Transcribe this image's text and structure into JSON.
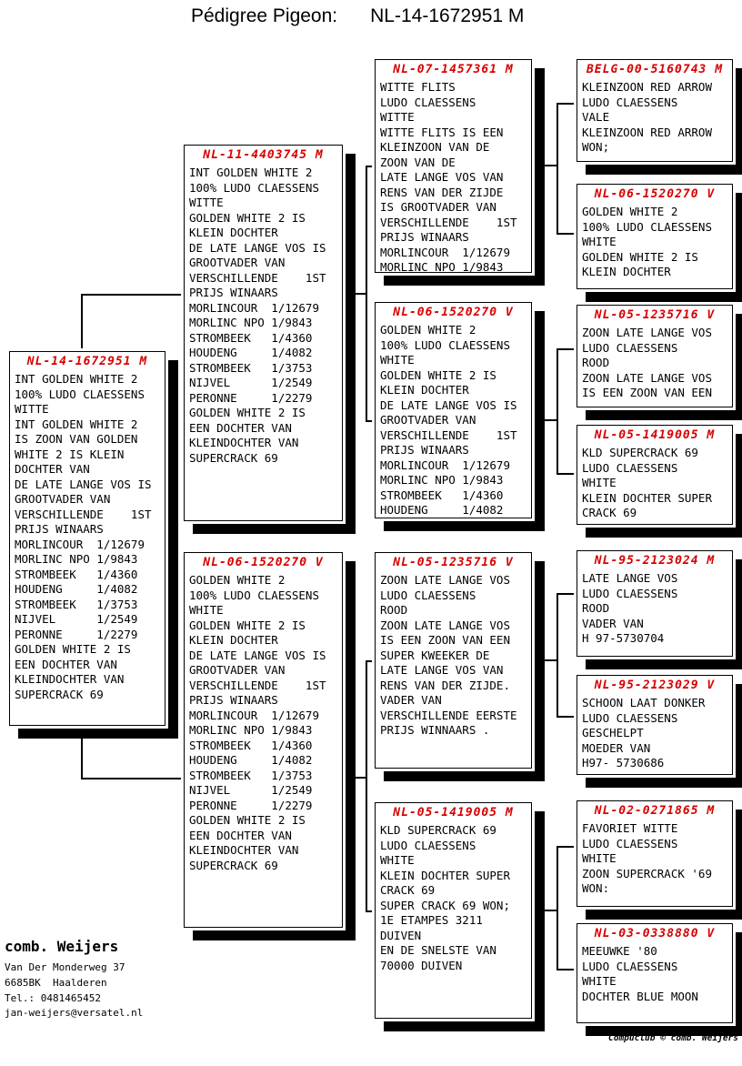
{
  "header": {
    "label": "Pédigree Pigeon:",
    "ring": "NL-14-1672951 M"
  },
  "colors": {
    "title_red": "#d60000",
    "line_black": "#000000"
  },
  "boxes": [
    {
      "generation": 1,
      "role": "subject",
      "title": "NL-14-1672951 M",
      "lines": [
        "INT GOLDEN WHITE 2",
        "100% LUDO CLAESSENS",
        "WITTE",
        "INT GOLDEN WHITE 2",
        "IS ZOON VAN GOLDEN",
        "WHITE 2 IS KLEIN",
        "DOCHTER VAN",
        "DE LATE LANGE VOS IS",
        "GROOTVADER VAN",
        "VERSCHILLENDE    1ST",
        "PRIJS WINAARS",
        "MORLINCOUR  1/12679",
        "MORLINC NPO 1/9843",
        "STROMBEEK   1/4360",
        "HOUDENG     1/4082",
        "STROMBEEK   1/3753",
        "NIJVEL      1/2549",
        "PERONNE     1/2279",
        "GOLDEN WHITE 2 IS",
        "EEN DOCHTER VAN",
        "KLEINDOCHTER VAN",
        "SUPERCRACK 69"
      ]
    },
    {
      "generation": 2,
      "role": "sire",
      "title": "NL-11-4403745 M",
      "lines": [
        "INT GOLDEN WHITE 2",
        "100% LUDO CLAESSENS",
        "WITTE",
        "GOLDEN WHITE 2 IS",
        "KLEIN DOCHTER",
        "DE LATE LANGE VOS IS",
        "GROOTVADER VAN",
        "VERSCHILLENDE    1ST",
        "PRIJS WINAARS",
        "MORLINCOUR  1/12679",
        "MORLINC NPO 1/9843",
        "STROMBEEK   1/4360",
        "HOUDENG     1/4082",
        "STROMBEEK   1/3753",
        "NIJVEL      1/2549",
        "PERONNE     1/2279",
        "GOLDEN WHITE 2 IS",
        "EEN DOCHTER VAN",
        "KLEINDOCHTER VAN",
        "SUPERCRACK 69"
      ]
    },
    {
      "generation": 2,
      "role": "dam",
      "title": "NL-06-1520270 V",
      "lines": [
        "GOLDEN WHITE 2",
        "100% LUDO CLAESSENS",
        "WHITE",
        "GOLDEN WHITE 2 IS",
        "KLEIN DOCHTER",
        "DE LATE LANGE VOS IS",
        "GROOTVADER VAN",
        "VERSCHILLENDE    1ST",
        "PRIJS WINAARS",
        "MORLINCOUR  1/12679",
        "MORLINC NPO 1/9843",
        "STROMBEEK   1/4360",
        "HOUDENG     1/4082",
        "STROMBEEK   1/3753",
        "NIJVEL      1/2549",
        "PERONNE     1/2279",
        "GOLDEN WHITE 2 IS",
        "EEN DOCHTER VAN",
        "KLEINDOCHTER VAN",
        "SUPERCRACK 69"
      ]
    },
    {
      "generation": 3,
      "role": "sire-sire",
      "title": "NL-07-1457361 M",
      "lines": [
        "WITTE FLITS",
        "LUDO CLAESSENS",
        "WITTE",
        "WITTE FLITS IS EEN",
        "KLEINZOON VAN DE",
        "ZOON VAN DE",
        "LATE LANGE VOS VAN",
        "RENS VAN DER ZIJDE",
        "IS GROOTVADER VAN",
        "VERSCHILLENDE    1ST",
        "PRIJS WINAARS",
        "MORLINCOUR  1/12679",
        "MORLINC NPO 1/9843"
      ]
    },
    {
      "generation": 3,
      "role": "sire-dam",
      "title": "NL-06-1520270 V",
      "lines": [
        "GOLDEN WHITE 2",
        "100% LUDO CLAESSENS",
        "WHITE",
        "GOLDEN WHITE 2 IS",
        "KLEIN DOCHTER",
        "DE LATE LANGE VOS IS",
        "GROOTVADER VAN",
        "VERSCHILLENDE    1ST",
        "PRIJS WINAARS",
        "MORLINCOUR  1/12679",
        "MORLINC NPO 1/9843",
        "STROMBEEK   1/4360",
        "HOUDENG     1/4082"
      ]
    },
    {
      "generation": 3,
      "role": "dam-sire",
      "title": "NL-05-1235716 V",
      "lines": [
        "ZOON LATE LANGE VOS",
        "LUDO CLAESSENS",
        "ROOD",
        "ZOON LATE LANGE VOS",
        "IS EEN ZOON VAN EEN",
        "SUPER KWEEKER DE",
        "LATE LANGE VOS VAN",
        "RENS VAN DER ZIJDE.",
        "VADER VAN",
        "VERSCHILLENDE EERSTE",
        "PRIJS WINNAARS ."
      ]
    },
    {
      "generation": 3,
      "role": "dam-dam",
      "title": "NL-05-1419005 M",
      "lines": [
        "KLD SUPERCRACK 69",
        "LUDO CLAESSENS",
        "WHITE",
        "KLEIN DOCHTER SUPER",
        "CRACK 69",
        "SUPER CRACK 69 WON;",
        "1E ETAMPES 3211",
        "DUIVEN",
        "EN DE SNELSTE VAN",
        "70000 DUIVEN"
      ]
    },
    {
      "generation": 4,
      "role": "gen4-1",
      "title": "BELG-00-5160743 M",
      "lines": [
        "KLEINZOON RED ARROW",
        "LUDO CLAESSENS",
        "VALE",
        "KLEINZOON RED ARROW",
        "WON;"
      ]
    },
    {
      "generation": 4,
      "role": "gen4-2",
      "title": "NL-06-1520270 V",
      "lines": [
        "GOLDEN WHITE 2",
        "100% LUDO CLAESSENS",
        "WHITE",
        "GOLDEN WHITE 2 IS",
        "KLEIN DOCHTER"
      ]
    },
    {
      "generation": 4,
      "role": "gen4-3",
      "title": "NL-05-1235716 V",
      "lines": [
        "ZOON LATE LANGE VOS",
        "LUDO CLAESSENS",
        "ROOD",
        "ZOON LATE LANGE VOS",
        "IS EEN ZOON VAN EEN"
      ]
    },
    {
      "generation": 4,
      "role": "gen4-4",
      "title": "NL-05-1419005 M",
      "lines": [
        "KLD SUPERCRACK 69",
        "LUDO CLAESSENS",
        "WHITE",
        "KLEIN DOCHTER SUPER",
        "CRACK 69"
      ]
    },
    {
      "generation": 4,
      "role": "gen4-5",
      "title": "NL-95-2123024 M",
      "lines": [
        "LATE LANGE VOS",
        "LUDO CLAESSENS",
        "ROOD",
        "VADER VAN",
        "H 97-5730704"
      ]
    },
    {
      "generation": 4,
      "role": "gen4-6",
      "title": "NL-95-2123029 V",
      "lines": [
        "SCHOON LAAT DONKER",
        "LUDO CLAESSENS",
        "GESCHELPT",
        "MOEDER VAN",
        "H97- 5730686"
      ]
    },
    {
      "generation": 4,
      "role": "gen4-7",
      "title": "NL-02-0271865 M",
      "lines": [
        "FAVORIET WITTE",
        "LUDO CLAESSENS",
        "WHITE",
        "ZOON SUPERCRACK '69",
        "WON:"
      ]
    },
    {
      "generation": 4,
      "role": "gen4-8",
      "title": "NL-03-0338880 V",
      "lines": [
        "MEEUWKE '80",
        "LUDO CLAESSENS",
        "WHITE",
        "DOCHTER BLUE MOON"
      ]
    }
  ],
  "footer": {
    "breeder": "comb. Weijers",
    "address": [
      "Van Der Monderweg 37",
      "6685BK  Haalderen",
      "Tel.: 0481465452",
      "jan-weijers@versatel.nl"
    ],
    "credit": "Compuclub © comb. Weijers"
  }
}
